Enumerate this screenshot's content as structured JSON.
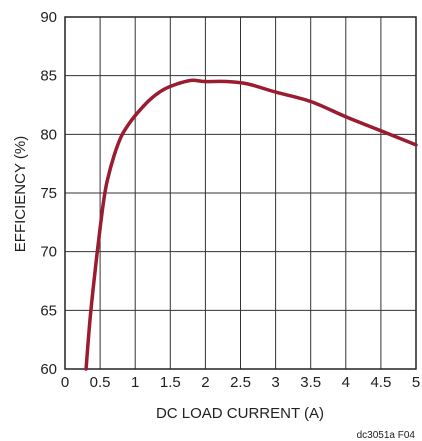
{
  "chart_data": {
    "type": "line",
    "title": "",
    "xlabel": "DC LOAD CURRENT (A)",
    "ylabel": "EFFICIENCY (%)",
    "xlim": [
      0,
      5
    ],
    "ylim": [
      60,
      90
    ],
    "x_ticks": [
      "0",
      "0.5",
      "1",
      "1.5",
      "2",
      "2.5",
      "3",
      "3.5",
      "4",
      "4.5",
      "5"
    ],
    "y_ticks": [
      "60",
      "65",
      "70",
      "75",
      "80",
      "85",
      "90"
    ],
    "grid": true,
    "line_color": "#9b1b30",
    "series": [
      {
        "x": [
          0.3,
          0.35,
          0.4,
          0.45,
          0.5,
          0.55,
          0.6,
          0.7,
          0.8,
          0.9,
          1.0,
          1.2,
          1.4,
          1.6,
          1.8,
          2.0,
          2.3,
          2.6,
          3.0,
          3.5,
          4.0,
          4.5,
          5.0
        ],
        "y": [
          60.0,
          63.8,
          66.8,
          69.5,
          72.0,
          74.3,
          76.0,
          78.2,
          79.8,
          80.8,
          81.6,
          82.9,
          83.8,
          84.3,
          84.6,
          84.5,
          84.5,
          84.3,
          83.6,
          82.8,
          81.5,
          80.3,
          79.1
        ]
      }
    ],
    "footnote": "dc3051a F04"
  }
}
